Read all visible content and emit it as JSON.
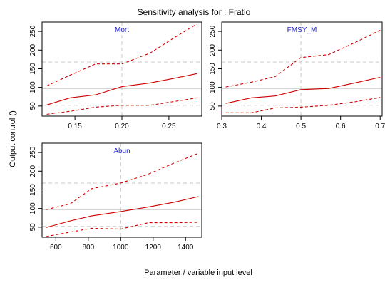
{
  "title": "Sensitivity analysis for : Fratio",
  "xlabel": "Parameter / variable input level",
  "ylabel": "Output control ()",
  "colors": {
    "series": "#cc0000",
    "panel_title": "#2222cc",
    "reference": "#c8c8c8",
    "frame": "#000000"
  },
  "chart_data": [
    {
      "type": "line",
      "panel": "Mort",
      "x": [
        0.12,
        0.145,
        0.172,
        0.2,
        0.23,
        0.255,
        0.28
      ],
      "series": [
        {
          "name": "upper",
          "style": "dashed",
          "values": [
            104,
            133,
            163,
            163,
            192,
            232,
            270
          ]
        },
        {
          "name": "central",
          "style": "solid",
          "values": [
            53,
            72,
            80,
            102,
            112,
            124,
            137
          ]
        },
        {
          "name": "lower",
          "style": "dashed",
          "values": [
            28,
            36,
            47,
            52,
            52,
            62,
            72
          ]
        }
      ],
      "xticks": [
        0.15,
        0.2,
        0.25
      ],
      "xtick_labels": [
        "0.15",
        "0.20",
        "0.25"
      ],
      "yticks": [
        50,
        100,
        150,
        200,
        250
      ],
      "ytick_labels": [
        "50",
        "100",
        "150",
        "200",
        "250"
      ],
      "xlim": [
        0.115,
        0.285
      ],
      "ylim": [
        23,
        275
      ],
      "ref_x": [
        0.2
      ],
      "ref_y": [
        52,
        97,
        168
      ]
    },
    {
      "type": "line",
      "panel": "FMSY_M",
      "x": [
        0.31,
        0.375,
        0.435,
        0.5,
        0.57,
        0.64,
        0.7
      ],
      "series": [
        {
          "name": "upper",
          "style": "dashed",
          "values": [
            101,
            114,
            129,
            180,
            188,
            222,
            253
          ]
        },
        {
          "name": "central",
          "style": "solid",
          "values": [
            57,
            72,
            77,
            94,
            97,
            113,
            127
          ]
        },
        {
          "name": "lower",
          "style": "dashed",
          "values": [
            32,
            32,
            45,
            47,
            52,
            62,
            73
          ]
        }
      ],
      "xticks": [
        0.3,
        0.4,
        0.5,
        0.6,
        0.7
      ],
      "xtick_labels": [
        "0.3",
        "0.4",
        "0.5",
        "0.6",
        "0.7"
      ],
      "yticks": [
        50,
        100,
        150,
        200,
        250
      ],
      "ytick_labels": [
        "50",
        "100",
        "150",
        "200",
        "250"
      ],
      "xlim": [
        0.3,
        0.705
      ],
      "ylim": [
        23,
        275
      ],
      "ref_x": [
        0.5
      ],
      "ref_y": [
        52,
        97,
        168
      ]
    },
    {
      "type": "line",
      "panel": "Abun",
      "x": [
        540,
        690,
        820,
        1000,
        1170,
        1330,
        1480
      ],
      "series": [
        {
          "name": "upper",
          "style": "dashed",
          "values": [
            97,
            113,
            153,
            168,
            192,
            222,
            248
          ]
        },
        {
          "name": "central",
          "style": "solid",
          "values": [
            49,
            67,
            80,
            92,
            104,
            117,
            132
          ]
        },
        {
          "name": "lower",
          "style": "dashed",
          "values": [
            25,
            37,
            47,
            45,
            62,
            62,
            63
          ]
        }
      ],
      "xticks": [
        600,
        800,
        1000,
        1200,
        1400
      ],
      "xtick_labels": [
        "600",
        "800",
        "1000",
        "1200",
        "1400"
      ],
      "yticks": [
        50,
        100,
        150,
        200,
        250
      ],
      "ytick_labels": [
        "50",
        "100",
        "150",
        "200",
        "250"
      ],
      "xlim": [
        515,
        1500
      ],
      "ylim": [
        23,
        275
      ],
      "ref_x": [
        1000
      ],
      "ref_y": [
        52,
        97,
        168
      ]
    }
  ]
}
